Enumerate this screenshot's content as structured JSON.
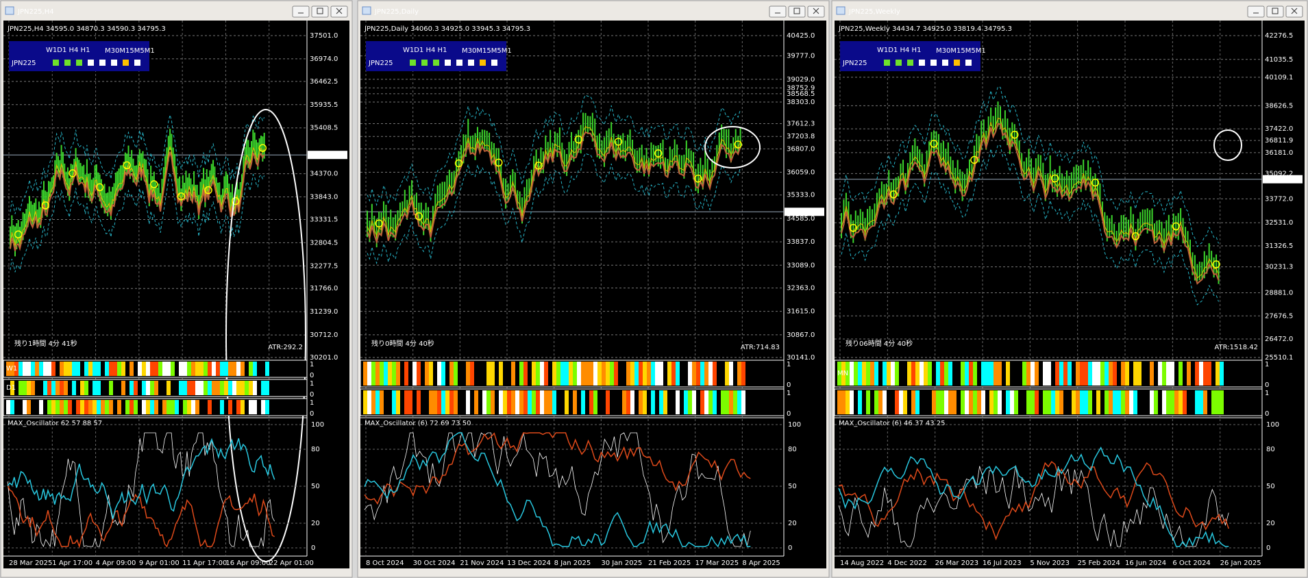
{
  "panel": {
    "major": "W1D1 H4 H1",
    "minor": "M30M15M5M1",
    "symbol": "JPN225"
  },
  "windows": [
    {
      "title": "JPN225,H4",
      "header": "JPN225,H4  34595.0 34870.3 34590.3 34795.3",
      "price_labels": [
        "37501.0",
        "36974.0",
        "36462.5",
        "35935.5",
        "35408.5",
        "34370.0",
        "33843.0",
        "33331.5",
        "32804.5",
        "32277.5",
        "31766.0",
        "31239.0",
        "30712.0",
        "30201.0"
      ],
      "current_price": "34795.3",
      "time_left": "残り1時間 4分 41秒",
      "atr": "ATR:292.2",
      "strips": [
        {
          "label": "W1",
          "ticks": [
            1,
            0
          ]
        },
        {
          "label": "D1",
          "ticks": [
            1,
            0
          ]
        },
        {
          "ticks": [
            1,
            0
          ]
        }
      ],
      "oscillator": {
        "label": "MAX_Oscillator 62 57 88 57",
        "ticks": [
          100,
          80,
          50,
          20,
          0
        ]
      },
      "dates": [
        "28 Mar 2025",
        "1 Apr 17:00",
        "4 Apr 09:00",
        "9 Apr 01:00",
        "11 Apr 17:00",
        "16 Apr 09:00",
        "22 Apr 01:00"
      ]
    },
    {
      "title": "JPN225,Daily",
      "header": "JPN225,Daily  34060.3 34925.0 33945.3 34795.3",
      "price_labels": [
        "40425.0",
        "39777.0",
        "39029.0",
        "38752.9",
        "38568.5",
        "38303.0",
        "37612.3",
        "37203.8",
        "36807.0",
        "36059.0",
        "35333.0",
        "34585.0",
        "33837.0",
        "33089.0",
        "32363.0",
        "31615.0",
        "30867.0",
        "30141.0"
      ],
      "current_price": "34795.3",
      "time_left": "残り0時間 4分 40秒",
      "atr": "ATR:714.83",
      "strips": [
        {
          "ticks": [
            1,
            0
          ]
        },
        {
          "ticks": [
            1,
            0
          ]
        }
      ],
      "oscillator": {
        "label": "MAX_Oscillator (6) 72 69 73 50",
        "ticks": [
          100,
          80,
          50,
          20,
          0
        ]
      },
      "dates": [
        "8 Oct 2024",
        "30 Oct 2024",
        "21 Nov 2024",
        "13 Dec 2024",
        "8 Jan 2025",
        "30 Jan 2025",
        "21 Feb 2025",
        "17 Mar 2025",
        "8 Apr 2025"
      ]
    },
    {
      "title": "JPN225,Weekly",
      "header": "JPN225,Weekly  34434.7 34925.0 33819.4 34795.3",
      "price_labels": [
        "42276.5",
        "41035.5",
        "40109.1",
        "38626.5",
        "37422.0",
        "36811.9",
        "36181.0",
        "35092.2",
        "33772.0",
        "32531.0",
        "31326.5",
        "30231.3",
        "28881.0",
        "27676.5",
        "26472.0",
        "25510.1"
      ],
      "current_price": "34795.3",
      "time_left": "残り06時間 4分 40秒",
      "atr": "ATR:1518.42",
      "strips": [
        {
          "label": "MN",
          "ticks": [
            1,
            0
          ]
        },
        {
          "ticks": [
            1,
            0
          ]
        }
      ],
      "oscillator": {
        "label": "MAX_Oscillator (6) 46 37 43 25",
        "ticks": [
          100,
          80,
          50,
          20,
          0
        ]
      },
      "dates": [
        "14 Aug 2022",
        "4 Dec 2022",
        "26 Mar 2023",
        "16 Jul 2023",
        "5 Nov 2023",
        "25 Feb 2024",
        "16 Jun 2024",
        "6 Oct 2024",
        "26 Jan 2025"
      ]
    }
  ]
}
